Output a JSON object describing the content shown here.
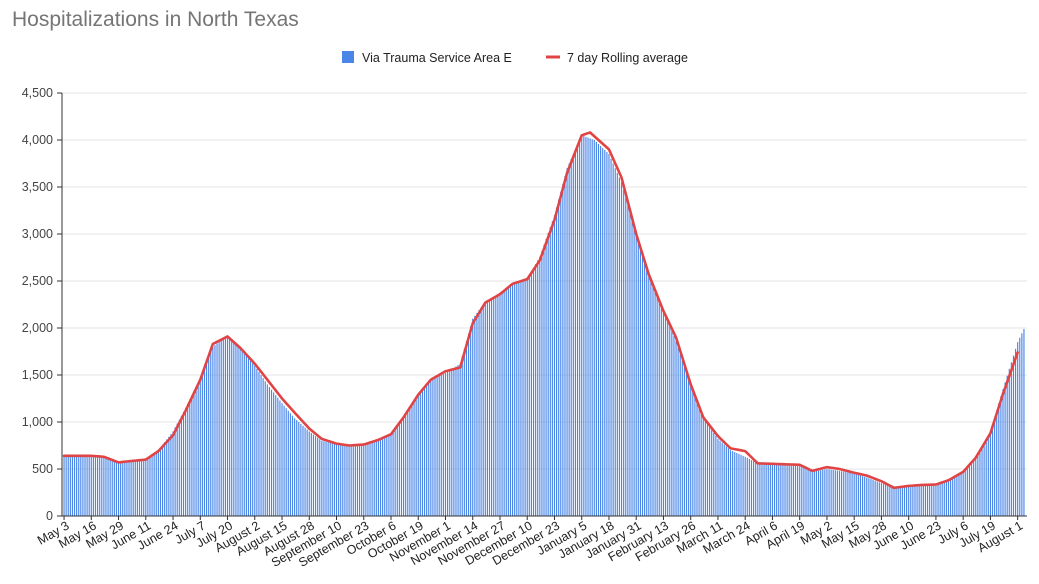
{
  "chart_data": {
    "type": "bar",
    "title": "Hospitalizations in North Texas",
    "xlabel": "",
    "ylabel": "",
    "ylim": [
      0,
      4500
    ],
    "y_ticks": [
      "0",
      "500",
      "1,000",
      "1,500",
      "2,000",
      "2,500",
      "3,000",
      "3,500",
      "4,000",
      "4,500"
    ],
    "grid": "horizontal",
    "legend_position": "top",
    "x_start": "2020-05-03",
    "x_end": "2021-08-04",
    "x_tick_labels": [
      "May 3",
      "May 16",
      "May 29",
      "June 11",
      "June 24",
      "July 7",
      "July 20",
      "August 2",
      "August 15",
      "August 28",
      "September 10",
      "September 23",
      "October 6",
      "October 19",
      "November 1",
      "November 14",
      "November 27",
      "December 10",
      "December 23",
      "January 5",
      "January 18",
      "January 31",
      "February 13",
      "February 26",
      "March 11",
      "March 24",
      "April 6",
      "April 19",
      "May 2",
      "May 15",
      "May 28",
      "June 10",
      "June 23",
      "July 6",
      "July 19",
      "August 1"
    ],
    "series": [
      {
        "name": "Via Trauma Service Area E",
        "kind": "bar",
        "color": "#4a86e8",
        "values_by_date": [
          [
            "2020-05-03",
            640
          ],
          [
            "2020-05-10",
            630
          ],
          [
            "2020-05-16",
            640
          ],
          [
            "2020-05-22",
            630
          ],
          [
            "2020-05-29",
            570
          ],
          [
            "2020-06-04",
            590
          ],
          [
            "2020-06-11",
            610
          ],
          [
            "2020-06-17",
            700
          ],
          [
            "2020-06-24",
            900
          ],
          [
            "2020-06-30",
            1150
          ],
          [
            "2020-07-07",
            1470
          ],
          [
            "2020-07-13",
            1800
          ],
          [
            "2020-07-20",
            1920
          ],
          [
            "2020-07-26",
            1780
          ],
          [
            "2020-08-02",
            1600
          ],
          [
            "2020-08-08",
            1400
          ],
          [
            "2020-08-15",
            1200
          ],
          [
            "2020-08-21",
            1040
          ],
          [
            "2020-08-28",
            900
          ],
          [
            "2020-09-03",
            800
          ],
          [
            "2020-09-10",
            760
          ],
          [
            "2020-09-16",
            740
          ],
          [
            "2020-09-23",
            760
          ],
          [
            "2020-09-30",
            800
          ],
          [
            "2020-10-06",
            870
          ],
          [
            "2020-10-12",
            1050
          ],
          [
            "2020-10-19",
            1300
          ],
          [
            "2020-10-25",
            1450
          ],
          [
            "2020-11-01",
            1520
          ],
          [
            "2020-11-08",
            1620
          ],
          [
            "2020-11-14",
            2100
          ],
          [
            "2020-11-20",
            2280
          ],
          [
            "2020-11-27",
            2370
          ],
          [
            "2020-12-03",
            2480
          ],
          [
            "2020-12-10",
            2520
          ],
          [
            "2020-12-16",
            2760
          ],
          [
            "2020-12-23",
            3200
          ],
          [
            "2020-12-29",
            3700
          ],
          [
            "2021-01-05",
            4050
          ],
          [
            "2021-01-11",
            4000
          ],
          [
            "2021-01-18",
            3850
          ],
          [
            "2021-01-24",
            3550
          ],
          [
            "2021-01-31",
            2980
          ],
          [
            "2021-02-06",
            2580
          ],
          [
            "2021-02-13",
            2180
          ],
          [
            "2021-02-19",
            1860
          ],
          [
            "2021-02-26",
            1380
          ],
          [
            "2021-03-04",
            1050
          ],
          [
            "2021-03-11",
            820
          ],
          [
            "2021-03-17",
            700
          ],
          [
            "2021-03-24",
            630
          ],
          [
            "2021-03-30",
            560
          ],
          [
            "2021-04-06",
            545
          ],
          [
            "2021-04-12",
            540
          ],
          [
            "2021-04-19",
            530
          ],
          [
            "2021-04-25",
            470
          ],
          [
            "2021-05-02",
            500
          ],
          [
            "2021-05-08",
            480
          ],
          [
            "2021-05-15",
            450
          ],
          [
            "2021-05-21",
            410
          ],
          [
            "2021-05-28",
            350
          ],
          [
            "2021-06-03",
            300
          ],
          [
            "2021-06-10",
            320
          ],
          [
            "2021-06-16",
            325
          ],
          [
            "2021-06-23",
            330
          ],
          [
            "2021-06-29",
            390
          ],
          [
            "2021-07-06",
            470
          ],
          [
            "2021-07-12",
            620
          ],
          [
            "2021-07-19",
            900
          ],
          [
            "2021-07-25",
            1350
          ],
          [
            "2021-08-01",
            1850
          ],
          [
            "2021-08-04",
            1990
          ]
        ]
      },
      {
        "name": "7 day Rolling average",
        "kind": "line",
        "color": "#e04444",
        "values_by_date": [
          [
            "2020-05-03",
            640
          ],
          [
            "2020-05-10",
            640
          ],
          [
            "2020-05-16",
            640
          ],
          [
            "2020-05-22",
            630
          ],
          [
            "2020-05-29",
            570
          ],
          [
            "2020-06-04",
            585
          ],
          [
            "2020-06-11",
            600
          ],
          [
            "2020-06-17",
            690
          ],
          [
            "2020-06-24",
            860
          ],
          [
            "2020-06-30",
            1120
          ],
          [
            "2020-07-07",
            1450
          ],
          [
            "2020-07-13",
            1830
          ],
          [
            "2020-07-20",
            1910
          ],
          [
            "2020-07-26",
            1790
          ],
          [
            "2020-08-02",
            1620
          ],
          [
            "2020-08-08",
            1450
          ],
          [
            "2020-08-15",
            1250
          ],
          [
            "2020-08-21",
            1100
          ],
          [
            "2020-08-28",
            930
          ],
          [
            "2020-09-03",
            820
          ],
          [
            "2020-09-10",
            770
          ],
          [
            "2020-09-16",
            750
          ],
          [
            "2020-09-23",
            760
          ],
          [
            "2020-09-30",
            810
          ],
          [
            "2020-10-06",
            870
          ],
          [
            "2020-10-12",
            1050
          ],
          [
            "2020-10-19",
            1290
          ],
          [
            "2020-10-25",
            1450
          ],
          [
            "2020-11-01",
            1540
          ],
          [
            "2020-11-08",
            1580
          ],
          [
            "2020-11-14",
            2050
          ],
          [
            "2020-11-20",
            2270
          ],
          [
            "2020-11-27",
            2360
          ],
          [
            "2020-12-03",
            2470
          ],
          [
            "2020-12-10",
            2520
          ],
          [
            "2020-12-16",
            2720
          ],
          [
            "2020-12-23",
            3150
          ],
          [
            "2020-12-29",
            3650
          ],
          [
            "2021-01-05",
            4050
          ],
          [
            "2021-01-09",
            4080
          ],
          [
            "2021-01-18",
            3900
          ],
          [
            "2021-01-24",
            3600
          ],
          [
            "2021-01-31",
            3000
          ],
          [
            "2021-02-06",
            2570
          ],
          [
            "2021-02-13",
            2180
          ],
          [
            "2021-02-19",
            1900
          ],
          [
            "2021-02-26",
            1400
          ],
          [
            "2021-03-04",
            1050
          ],
          [
            "2021-03-11",
            850
          ],
          [
            "2021-03-17",
            720
          ],
          [
            "2021-03-24",
            690
          ],
          [
            "2021-03-30",
            560
          ],
          [
            "2021-04-06",
            555
          ],
          [
            "2021-04-12",
            550
          ],
          [
            "2021-04-19",
            545
          ],
          [
            "2021-04-25",
            480
          ],
          [
            "2021-05-02",
            520
          ],
          [
            "2021-05-08",
            500
          ],
          [
            "2021-05-15",
            460
          ],
          [
            "2021-05-21",
            430
          ],
          [
            "2021-05-28",
            370
          ],
          [
            "2021-06-03",
            300
          ],
          [
            "2021-06-10",
            320
          ],
          [
            "2021-06-16",
            330
          ],
          [
            "2021-06-23",
            335
          ],
          [
            "2021-06-29",
            380
          ],
          [
            "2021-07-06",
            470
          ],
          [
            "2021-07-12",
            620
          ],
          [
            "2021-07-19",
            880
          ],
          [
            "2021-07-25",
            1300
          ],
          [
            "2021-08-01",
            1740
          ]
        ]
      }
    ]
  }
}
